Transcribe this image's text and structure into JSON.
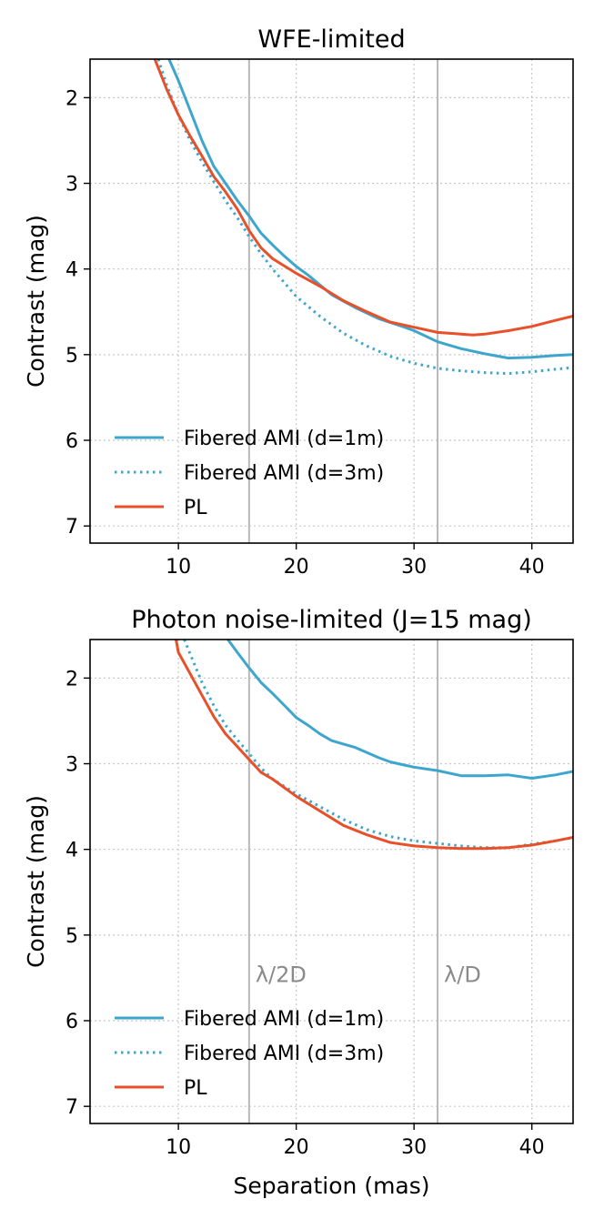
{
  "chart_data": [
    {
      "type": "line",
      "title": "WFE-limited",
      "xlabel": "",
      "ylabel": "Contrast (mag)",
      "xlim": [
        2.5,
        43.5
      ],
      "ylim": [
        1.55,
        7.2
      ],
      "y_inverted": true,
      "xticks": [
        10,
        20,
        30,
        40
      ],
      "yticks": [
        2,
        3,
        4,
        5,
        6,
        7
      ],
      "grid": true,
      "legend_position": "lower-left",
      "vlines": [
        {
          "x": 16,
          "label": ""
        },
        {
          "x": 32,
          "label": ""
        }
      ],
      "series": [
        {
          "name": "Fibered AMI (d=1m)",
          "style": "solid",
          "color": "#3ea6cc",
          "x": [
            9.2,
            10,
            11,
            12,
            13,
            14,
            15,
            16,
            17,
            18,
            19,
            20,
            21,
            23,
            25,
            27,
            29,
            30,
            32,
            34,
            36,
            38,
            40,
            42,
            43.5
          ],
          "y": [
            1.55,
            1.8,
            2.15,
            2.5,
            2.8,
            3.0,
            3.2,
            3.38,
            3.58,
            3.72,
            3.85,
            3.97,
            4.07,
            4.3,
            4.45,
            4.58,
            4.67,
            4.72,
            4.85,
            4.93,
            4.99,
            5.04,
            5.03,
            5.01,
            5.0
          ]
        },
        {
          "name": "Fibered AMI (d=3m)",
          "style": "dotted",
          "color": "#3ea6cc",
          "x": [
            8.3,
            9,
            10,
            11,
            12,
            13,
            14,
            15,
            16,
            17,
            18,
            20,
            22,
            24,
            26,
            28,
            30,
            32,
            34,
            36,
            38,
            40,
            42,
            43.5
          ],
          "y": [
            1.55,
            1.85,
            2.2,
            2.5,
            2.75,
            2.98,
            3.2,
            3.4,
            3.62,
            3.82,
            4.0,
            4.32,
            4.55,
            4.75,
            4.9,
            5.02,
            5.1,
            5.16,
            5.19,
            5.21,
            5.22,
            5.2,
            5.17,
            5.15
          ]
        },
        {
          "name": "PL",
          "style": "solid",
          "color": "#e8502a",
          "x": [
            8.0,
            9,
            10,
            11,
            12,
            13,
            14,
            15,
            16,
            17,
            18,
            20,
            22,
            24,
            26,
            28,
            30,
            32,
            34,
            35,
            36,
            38,
            40,
            42,
            43.5
          ],
          "y": [
            1.55,
            1.9,
            2.2,
            2.45,
            2.68,
            2.92,
            3.1,
            3.3,
            3.55,
            3.75,
            3.88,
            4.05,
            4.2,
            4.37,
            4.5,
            4.62,
            4.68,
            4.74,
            4.76,
            4.77,
            4.76,
            4.72,
            4.67,
            4.6,
            4.55
          ]
        }
      ]
    },
    {
      "type": "line",
      "title": "Photon noise-limited (J=15 mag)",
      "xlabel": "Separation (mas)",
      "ylabel": "Contrast (mag)",
      "xlim": [
        2.5,
        43.5
      ],
      "ylim": [
        1.55,
        7.2
      ],
      "y_inverted": true,
      "xticks": [
        10,
        20,
        30,
        40
      ],
      "yticks": [
        2,
        3,
        4,
        5,
        6,
        7
      ],
      "grid": true,
      "legend_position": "lower-left",
      "vlines": [
        {
          "x": 16,
          "label": "λ/2D"
        },
        {
          "x": 32,
          "label": "λ/D"
        }
      ],
      "series": [
        {
          "name": "Fibered AMI (d=1m)",
          "style": "solid",
          "color": "#3ea6cc",
          "x": [
            14.2,
            15,
            16,
            17,
            18,
            19,
            20,
            21,
            22,
            23,
            24,
            25,
            26,
            27,
            28,
            29,
            30,
            32,
            34,
            36,
            38,
            40,
            42,
            43.5
          ],
          "y": [
            1.55,
            1.7,
            1.88,
            2.05,
            2.18,
            2.32,
            2.46,
            2.55,
            2.65,
            2.73,
            2.77,
            2.81,
            2.87,
            2.93,
            2.98,
            3.01,
            3.04,
            3.08,
            3.14,
            3.14,
            3.13,
            3.17,
            3.13,
            3.09
          ]
        },
        {
          "name": "Fibered AMI (d=3m)",
          "style": "dotted",
          "color": "#3ea6cc",
          "x": [
            10.5,
            11,
            12,
            13,
            14,
            15,
            16,
            17,
            18,
            20,
            22,
            24,
            26,
            28,
            30,
            32,
            34,
            36,
            38,
            40,
            42,
            43.5
          ],
          "y": [
            1.55,
            1.72,
            2.05,
            2.32,
            2.55,
            2.72,
            2.88,
            3.05,
            3.18,
            3.35,
            3.5,
            3.65,
            3.77,
            3.85,
            3.9,
            3.93,
            3.96,
            3.98,
            3.98,
            3.94,
            3.9,
            3.86
          ]
        },
        {
          "name": "PL",
          "style": "solid",
          "color": "#e8502a",
          "x": [
            9.8,
            10,
            11,
            12,
            13,
            14,
            15,
            16,
            17,
            18,
            20,
            22,
            24,
            26,
            28,
            30,
            32,
            34,
            36,
            38,
            40,
            42,
            43.5
          ],
          "y": [
            1.55,
            1.7,
            1.95,
            2.2,
            2.45,
            2.65,
            2.8,
            2.95,
            3.1,
            3.18,
            3.38,
            3.55,
            3.72,
            3.83,
            3.92,
            3.96,
            3.98,
            3.99,
            3.99,
            3.98,
            3.95,
            3.9,
            3.86
          ]
        }
      ]
    }
  ]
}
